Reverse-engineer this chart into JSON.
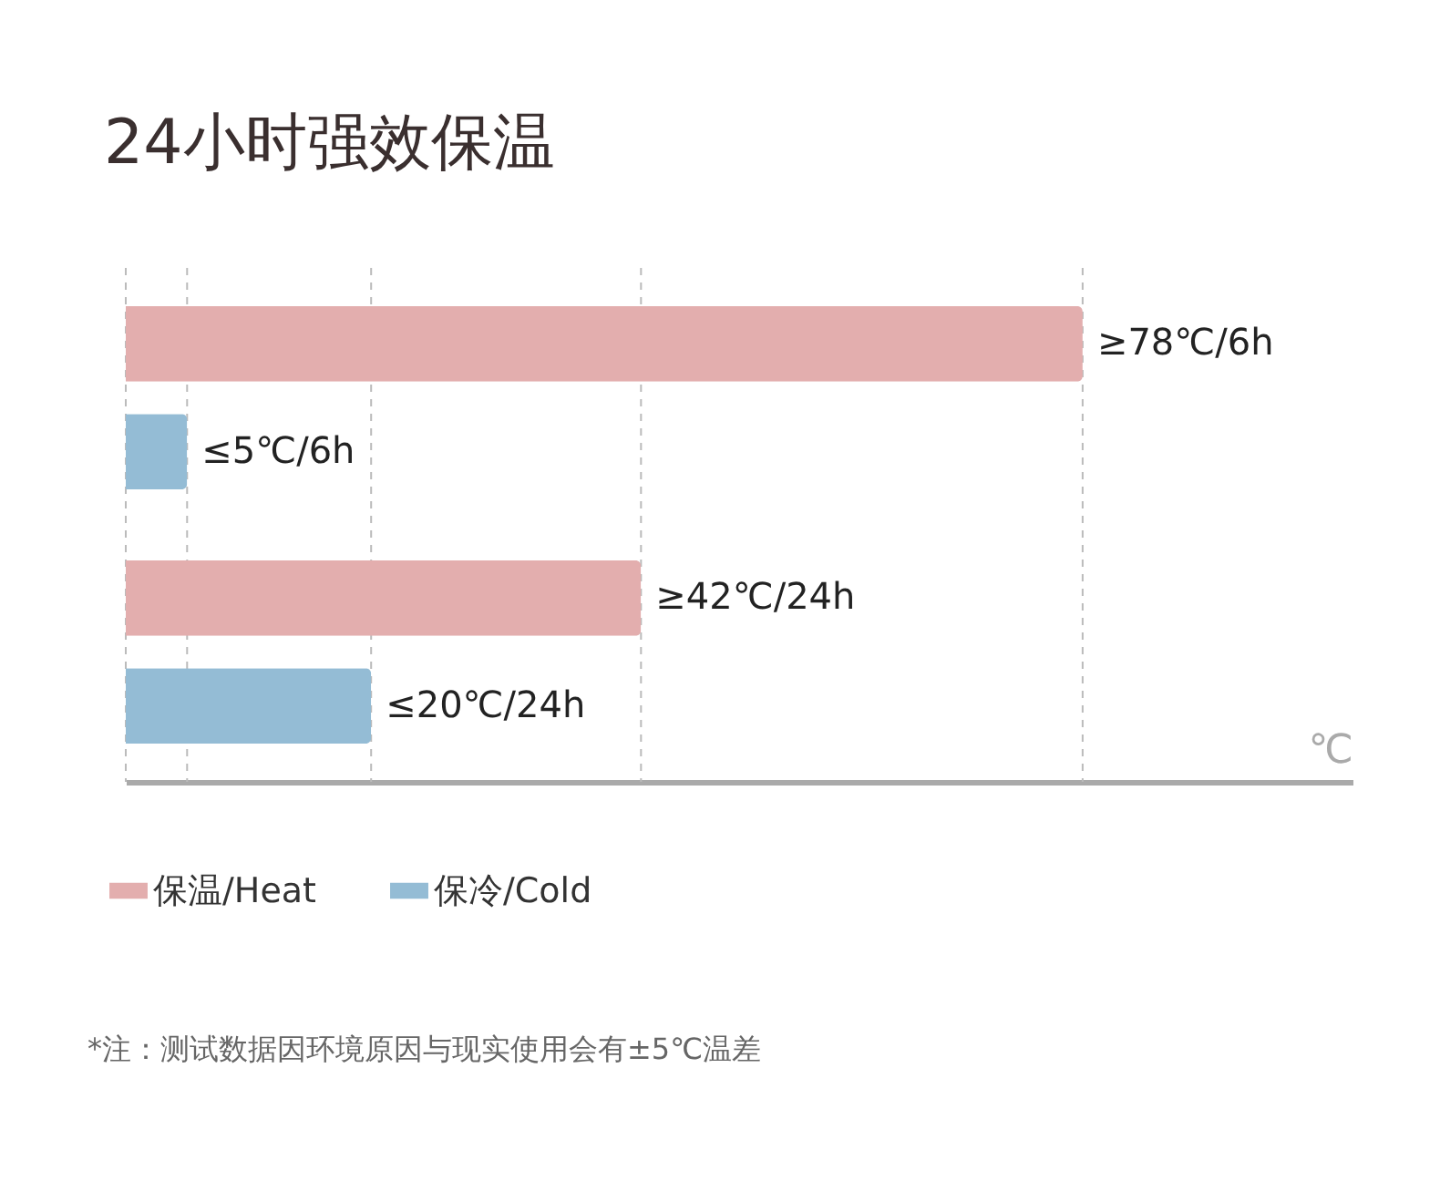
{
  "chart_data": {
    "type": "bar",
    "orientation": "horizontal",
    "title": "24小时强效保温",
    "xlabel": "℃",
    "categories": [
      null,
      null
    ],
    "xlim": [
      0,
      100
    ],
    "series": [
      {
        "name": "保温/Heat",
        "color": "#e3aeae",
        "values": [
          78,
          42
        ],
        "value_labels": [
          "≥78℃/6h",
          "≥42℃/24h"
        ]
      },
      {
        "name": "保冷/Cold",
        "color": "#94bcd5",
        "values": [
          5,
          20
        ],
        "value_labels": [
          "≤5℃/6h",
          "≤20℃/24h"
        ]
      }
    ],
    "ref_lines": [
      {
        "axis": "x",
        "value": 0,
        "color": "#bbbbbb",
        "line_style": "dashed"
      },
      {
        "axis": "x",
        "value": 5,
        "color": "#bbbbbb",
        "line_style": "dashed"
      },
      {
        "axis": "x",
        "value": 20,
        "color": "#bbbbbb",
        "line_style": "dashed"
      },
      {
        "axis": "x",
        "value": 42,
        "color": "#bbbbbb",
        "line_style": "dashed"
      },
      {
        "axis": "x",
        "value": 78,
        "color": "#bbbbbb",
        "line_style": "dashed"
      }
    ],
    "legend": "bottom left",
    "annotations": [
      "*注：测试数据因环境原因与现实使用会有±5℃温差"
    ]
  }
}
